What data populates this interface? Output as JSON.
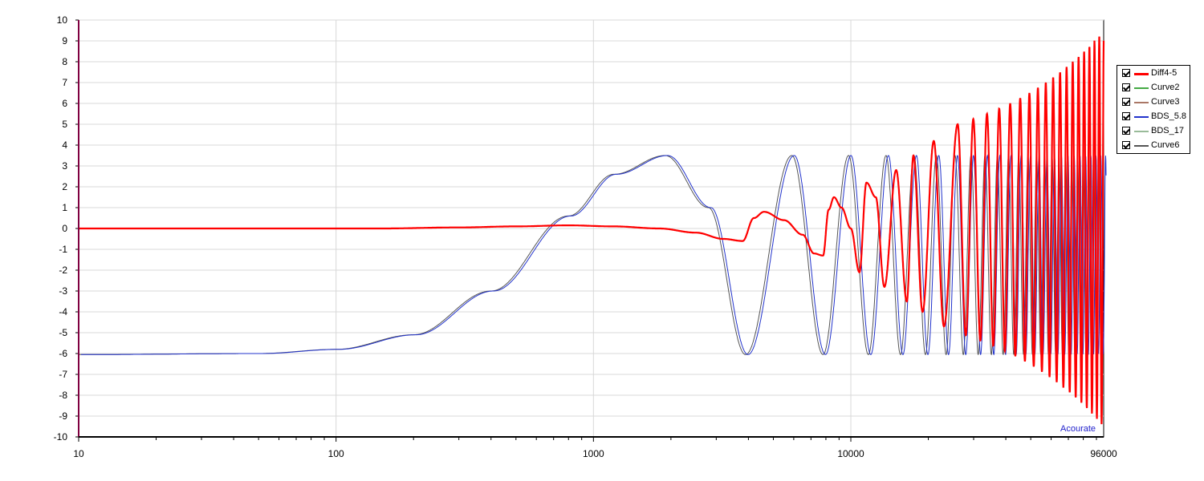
{
  "chart_data": {
    "type": "line",
    "title": "",
    "xlabel": "",
    "ylabel": "",
    "x_scale": "log",
    "xlim": [
      10,
      96000
    ],
    "ylim": [
      -10,
      10
    ],
    "x_ticks": [
      "10",
      "100",
      "1000",
      "10000",
      "96000"
    ],
    "x_tick_values": [
      10,
      100,
      1000,
      10000,
      96000
    ],
    "y_ticks": [
      "10",
      "9",
      "8",
      "7",
      "6",
      "5",
      "4",
      "3",
      "2",
      "1",
      "0",
      "-1",
      "-2",
      "-3",
      "-4",
      "-5",
      "-6",
      "-7",
      "-8",
      "-9",
      "-10"
    ],
    "y_tick_values": [
      10,
      9,
      8,
      7,
      6,
      5,
      4,
      3,
      2,
      1,
      0,
      -1,
      -2,
      -3,
      -4,
      -5,
      -6,
      -7,
      -8,
      -9,
      -10
    ],
    "grid": true,
    "legend_position": "right",
    "series": [
      {
        "name": "Diff4-5",
        "color": "#ff0000",
        "checked": true,
        "x": [
          10,
          150,
          300,
          500,
          800,
          1200,
          1800,
          2500,
          3200,
          3800,
          4200,
          4600,
          5500,
          6500,
          7200,
          7800,
          8200,
          8600,
          9200,
          10000,
          10800,
          11500,
          12500,
          13500,
          15000,
          16500,
          17500,
          19000,
          21000,
          23000,
          26000,
          30000,
          35000,
          40000,
          50000,
          60000,
          75000,
          96000
        ],
        "y": [
          0,
          0,
          0.05,
          0.1,
          0.15,
          0.1,
          0,
          -0.2,
          -0.5,
          -0.6,
          0.5,
          0.8,
          0.4,
          -0.3,
          -1.2,
          -1.3,
          0.9,
          1.5,
          1.0,
          0,
          -2.1,
          2.2,
          1.5,
          -2.8,
          2.8,
          -3.5,
          3.5,
          -4.0,
          4.2,
          -4.7,
          5.0,
          -5.5,
          6.0,
          -6.5,
          7.2,
          -8.0,
          8.8,
          9.5
        ]
      },
      {
        "name": "Curve2",
        "color": "#44aa44",
        "checked": true,
        "x": [],
        "y": []
      },
      {
        "name": "Curve3",
        "color": "#aa7766",
        "checked": true,
        "x": [],
        "y": []
      },
      {
        "name": "BDS_5.8",
        "color": "#2233cc",
        "checked": true,
        "x": [
          10,
          50,
          100,
          200,
          400,
          800,
          1200,
          1900,
          2800,
          3900,
          5900,
          7800,
          9800,
          11700,
          13700,
          15600,
          17600,
          19500,
          21500,
          96000
        ],
        "y": [
          -6.05,
          -6.0,
          -5.8,
          -5.1,
          -3.0,
          0.6,
          2.6,
          3.5,
          1.0,
          -6.05,
          3.5,
          -6.05,
          3.5,
          -6.05,
          3.5,
          -6.05,
          3.5,
          -6.05,
          3.5,
          3.5
        ]
      },
      {
        "name": "BDS_17",
        "color": "#99bb99",
        "checked": true,
        "x": [],
        "y": []
      },
      {
        "name": "Curve6",
        "color": "#555555",
        "checked": true,
        "x": [],
        "y": []
      }
    ],
    "annotations": [
      "Acourate"
    ]
  }
}
